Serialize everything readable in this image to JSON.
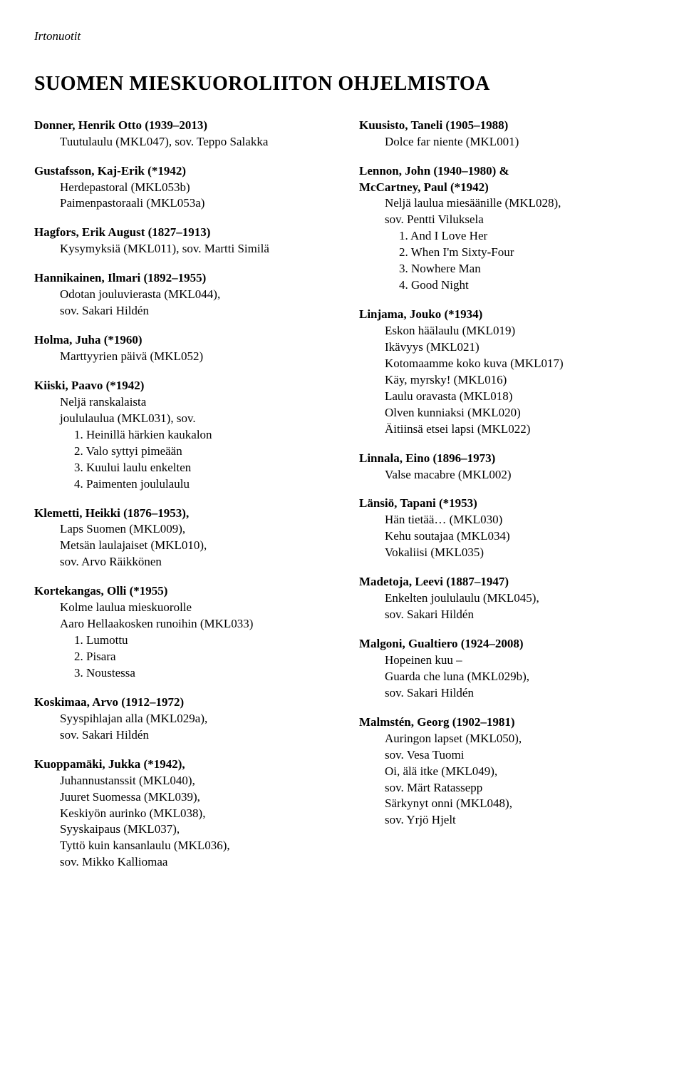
{
  "header": {
    "label": "Irtonuotit"
  },
  "title": "SUOMEN MIESKUOROLIITON OHJELMISTOA",
  "left": {
    "e1": {
      "head": "Donner, Henrik Otto (1939–2013)",
      "l1": "Tuutulaulu (MKL047), sov. Teppo Salakka"
    },
    "e2": {
      "head": "Gustafsson, Kaj-Erik (*1942)",
      "l1": "Herdepastoral (MKL053b)",
      "l2": "Paimenpastoraali (MKL053a)"
    },
    "e3": {
      "head": "Hagfors, Erik August (1827–1913)",
      "l1": "Kysymyksiä (MKL011), sov. Martti Similä"
    },
    "e4": {
      "head": "Hannikainen, Ilmari (1892–1955)",
      "l1": "Odotan jouluvierasta (MKL044),",
      "l2": "sov. Sakari Hildén"
    },
    "e5": {
      "head": "Holma, Juha (*1960)",
      "l1": "Marttyyrien päivä (MKL052)"
    },
    "e6": {
      "head": "Kiiski, Paavo (*1942)",
      "l1": "Neljä ranskalaista",
      "l2": "joululaulua (MKL031), sov.",
      "i1": "1. Heinillä härkien kaukalon",
      "i2": "2. Valo syttyi pimeään",
      "i3": "3. Kuului laulu enkelten",
      "i4": "4. Paimenten joululaulu"
    },
    "e7": {
      "head": "Klemetti, Heikki (1876–1953),",
      "l1": "Laps Suomen (MKL009),",
      "l2": "Metsän laulajaiset (MKL010),",
      "l3": "sov. Arvo Räikkönen"
    },
    "e8": {
      "head": "Kortekangas, Olli (*1955)",
      "l1": "Kolme laulua mieskuorolle",
      "l2": "Aaro Hellaakosken runoihin (MKL033)",
      "i1": "1. Lumottu",
      "i2": "2. Pisara",
      "i3": "3. Noustessa"
    },
    "e9": {
      "head": "Koskimaa, Arvo (1912–1972)",
      "l1": "Syyspihlajan alla (MKL029a),",
      "l2": "sov. Sakari Hildén"
    },
    "e10": {
      "head": "Kuoppamäki, Jukka (*1942),",
      "l1": "Juhannustanssit (MKL040),",
      "l2": "Juuret Suomessa (MKL039),",
      "l3": "Keskiyön aurinko (MKL038),",
      "l4": "Syyskaipaus (MKL037),",
      "l5": "Tyttö kuin kansanlaulu (MKL036),",
      "l6": "sov. Mikko Kalliomaa"
    }
  },
  "right": {
    "e1": {
      "head": "Kuusisto, Taneli (1905–1988)",
      "l1": "Dolce far niente (MKL001)"
    },
    "e2": {
      "head1": "Lennon, John (1940–1980) &",
      "head2": "McCartney, Paul (*1942)",
      "l1": "Neljä laulua miesäänille (MKL028),",
      "l2": "sov. Pentti Viluksela",
      "i1": "1. And I Love Her",
      "i2": "2. When I'm Sixty-Four",
      "i3": "3. Nowhere Man",
      "i4": "4. Good Night"
    },
    "e3": {
      "head": "Linjama, Jouko (*1934)",
      "l1": "Eskon häälaulu (MKL019)",
      "l2": "Ikävyys (MKL021)",
      "l3": "Kotomaamme koko kuva (MKL017)",
      "l4": "Käy, myrsky! (MKL016)",
      "l5": "Laulu oravasta (MKL018)",
      "l6": "Olven kunniaksi (MKL020)",
      "l7": "Äitiinsä etsei lapsi (MKL022)"
    },
    "e4": {
      "head": "Linnala, Eino (1896–1973)",
      "l1": "Valse macabre (MKL002)"
    },
    "e5": {
      "head": "Länsiö, Tapani (*1953)",
      "l1": "Hän tietää… (MKL030)",
      "l2": "Kehu soutajaa (MKL034)",
      "l3": "Vokaliisi (MKL035)"
    },
    "e6": {
      "head": "Madetoja, Leevi (1887–1947)",
      "l1": "Enkelten joululaulu (MKL045),",
      "l2": "sov. Sakari Hildén"
    },
    "e7": {
      "head": "Malgoni, Gualtiero (1924–2008)",
      "l1": "Hopeinen kuu –",
      "l2": "Guarda che luna (MKL029b),",
      "l3": "sov. Sakari Hildén"
    },
    "e8": {
      "head": "Malmstén, Georg (1902–1981)",
      "l1": "Auringon lapset (MKL050),",
      "l2": "sov. Vesa Tuomi",
      "l3": "Oi, älä itke (MKL049),",
      "l4": "sov. Märt Ratassepp",
      "l5": "Särkynyt onni (MKL048),",
      "l6": "sov. Yrjö Hjelt"
    }
  }
}
